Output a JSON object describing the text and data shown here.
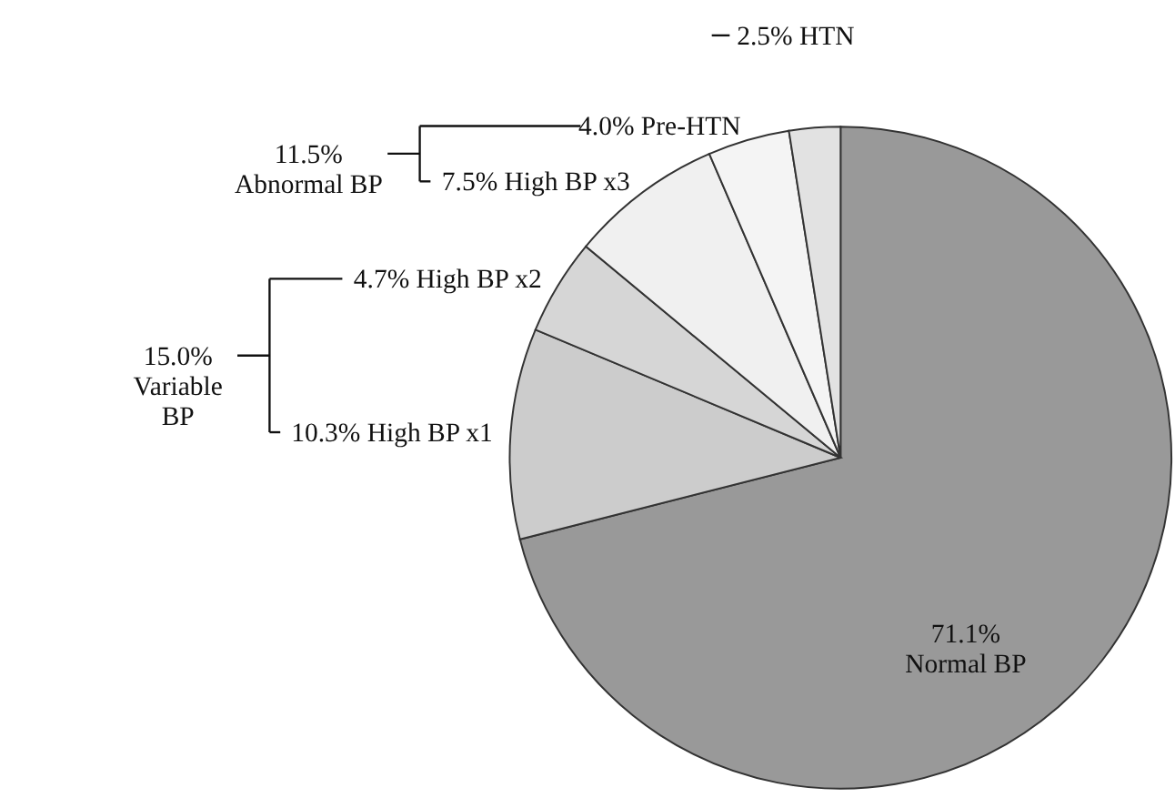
{
  "chart_data": {
    "type": "pie",
    "categories": [
      "Normal BP",
      "High BP x1",
      "High BP x2",
      "High BP x3",
      "Pre-HTN",
      "HTN"
    ],
    "values": [
      71.1,
      10.3,
      4.7,
      7.5,
      4.0,
      2.5
    ],
    "value_labels": [
      "71.1%",
      "10.3%",
      "4.7%",
      "7.5%",
      "4.0%",
      "2.5%"
    ],
    "colors": [
      "#999999",
      "#cccccc",
      "#d6d6d6",
      "#f0f0f0",
      "#f4f4f4",
      "#e2e2e2"
    ],
    "annotations": [
      "15.0%\nVariable\nBP",
      "11.5%\nAbnormal BP"
    ],
    "legend": false
  }
}
